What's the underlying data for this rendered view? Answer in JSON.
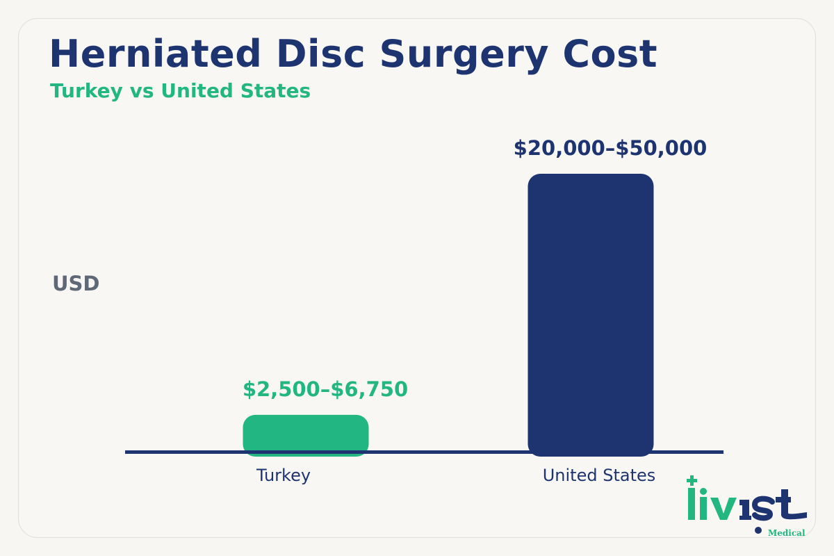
{
  "header": {
    "title": "Herniated Disc Surgery Cost",
    "subtitle": "Turkey vs United States"
  },
  "colors": {
    "navy": "#1e3470",
    "green": "#22b683",
    "gray": "#5f6877"
  },
  "chart_data": {
    "type": "bar",
    "title": "Herniated Disc Surgery Cost",
    "subtitle": "Turkey vs United States",
    "ylabel": "USD",
    "xlabel": "",
    "categories": [
      "Turkey",
      "United States"
    ],
    "ranges": [
      [
        2500,
        6750
      ],
      [
        20000,
        50000
      ]
    ],
    "values": [
      6750,
      50000
    ],
    "value_labels": [
      "$2,500–$6,750",
      "$20,000–$50,000"
    ],
    "bar_colors": [
      "#22b683",
      "#1e3470"
    ],
    "label_colors": [
      "#22b683",
      "#1e3470"
    ],
    "ylim": [
      0,
      50000
    ],
    "grid": false,
    "legend": "none"
  },
  "logo": {
    "wordmark": "livist",
    "tagline": "Medical"
  }
}
